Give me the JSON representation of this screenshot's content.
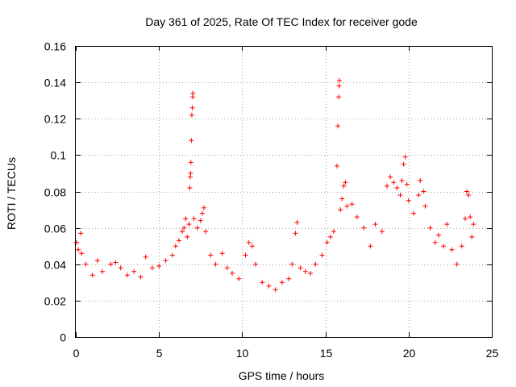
{
  "chart_data": {
    "type": "scatter",
    "title": "Day 361 of 2025, Rate Of TEC Index for receiver gode",
    "xlabel": "GPS time / hours",
    "ylabel": "ROTI / TECUs",
    "xlim": [
      0,
      25
    ],
    "ylim": [
      0,
      0.16
    ],
    "xticks": [
      0,
      5,
      10,
      15,
      20,
      25
    ],
    "xtick_labels": [
      "0",
      "5",
      "10",
      "15",
      "20",
      "25"
    ],
    "yticks": [
      0,
      0.02,
      0.04,
      0.06,
      0.08,
      0.1,
      0.12,
      0.14,
      0.16
    ],
    "ytick_labels": [
      "0",
      "0.02",
      "0.04",
      "0.06",
      "0.08",
      "0.1",
      "0.12",
      "0.14",
      "0.16"
    ],
    "grid": true,
    "marker": "+",
    "color": "#ff0000",
    "series": [
      {
        "values": [
          [
            0.05,
            0.052
          ],
          [
            0.15,
            0.048
          ],
          [
            0.3,
            0.057
          ],
          [
            0.35,
            0.046
          ],
          [
            0.6,
            0.04
          ],
          [
            1.0,
            0.034
          ],
          [
            1.3,
            0.042
          ],
          [
            1.6,
            0.036
          ],
          [
            2.1,
            0.04
          ],
          [
            2.4,
            0.041
          ],
          [
            2.7,
            0.038
          ],
          [
            3.1,
            0.034
          ],
          [
            3.5,
            0.036
          ],
          [
            3.9,
            0.033
          ],
          [
            4.2,
            0.044
          ],
          [
            4.6,
            0.038
          ],
          [
            5.0,
            0.039
          ],
          [
            5.4,
            0.042
          ],
          [
            5.8,
            0.045
          ],
          [
            6.0,
            0.05
          ],
          [
            6.2,
            0.053
          ],
          [
            6.4,
            0.058
          ],
          [
            6.5,
            0.06
          ],
          [
            6.6,
            0.065
          ],
          [
            6.7,
            0.055
          ],
          [
            6.8,
            0.062
          ],
          [
            6.85,
            0.082
          ],
          [
            6.88,
            0.088
          ],
          [
            6.9,
            0.09
          ],
          [
            6.92,
            0.096
          ],
          [
            6.95,
            0.108
          ],
          [
            6.97,
            0.122
          ],
          [
            7.0,
            0.126
          ],
          [
            7.02,
            0.132
          ],
          [
            7.04,
            0.134
          ],
          [
            7.1,
            0.065
          ],
          [
            7.3,
            0.06
          ],
          [
            7.5,
            0.064
          ],
          [
            7.6,
            0.068
          ],
          [
            7.7,
            0.071
          ],
          [
            7.8,
            0.058
          ],
          [
            8.1,
            0.045
          ],
          [
            8.4,
            0.04
          ],
          [
            8.8,
            0.046
          ],
          [
            9.1,
            0.038
          ],
          [
            9.4,
            0.035
          ],
          [
            9.8,
            0.032
          ],
          [
            10.2,
            0.045
          ],
          [
            10.4,
            0.052
          ],
          [
            10.6,
            0.05
          ],
          [
            10.8,
            0.04
          ],
          [
            11.2,
            0.03
          ],
          [
            11.6,
            0.028
          ],
          [
            12.0,
            0.026
          ],
          [
            12.4,
            0.03
          ],
          [
            12.8,
            0.032
          ],
          [
            13.0,
            0.04
          ],
          [
            13.2,
            0.057
          ],
          [
            13.3,
            0.063
          ],
          [
            13.5,
            0.038
          ],
          [
            13.8,
            0.036
          ],
          [
            14.1,
            0.035
          ],
          [
            14.4,
            0.04
          ],
          [
            14.8,
            0.045
          ],
          [
            15.1,
            0.052
          ],
          [
            15.3,
            0.055
          ],
          [
            15.5,
            0.058
          ],
          [
            15.7,
            0.094
          ],
          [
            15.75,
            0.116
          ],
          [
            15.8,
            0.132
          ],
          [
            15.82,
            0.138
          ],
          [
            15.84,
            0.141
          ],
          [
            15.9,
            0.07
          ],
          [
            16.0,
            0.076
          ],
          [
            16.1,
            0.083
          ],
          [
            16.2,
            0.085
          ],
          [
            16.3,
            0.072
          ],
          [
            16.6,
            0.073
          ],
          [
            16.9,
            0.066
          ],
          [
            17.3,
            0.06
          ],
          [
            17.7,
            0.05
          ],
          [
            18.0,
            0.062
          ],
          [
            18.4,
            0.058
          ],
          [
            18.7,
            0.083
          ],
          [
            18.9,
            0.088
          ],
          [
            19.1,
            0.085
          ],
          [
            19.3,
            0.082
          ],
          [
            19.5,
            0.078
          ],
          [
            19.6,
            0.086
          ],
          [
            19.7,
            0.095
          ],
          [
            19.8,
            0.099
          ],
          [
            19.9,
            0.084
          ],
          [
            20.0,
            0.075
          ],
          [
            20.3,
            0.068
          ],
          [
            20.6,
            0.078
          ],
          [
            20.7,
            0.086
          ],
          [
            20.9,
            0.08
          ],
          [
            21.0,
            0.072
          ],
          [
            21.3,
            0.06
          ],
          [
            21.6,
            0.052
          ],
          [
            21.8,
            0.056
          ],
          [
            22.1,
            0.05
          ],
          [
            22.3,
            0.062
          ],
          [
            22.6,
            0.048
          ],
          [
            22.9,
            0.04
          ],
          [
            23.2,
            0.05
          ],
          [
            23.4,
            0.065
          ],
          [
            23.5,
            0.08
          ],
          [
            23.6,
            0.078
          ],
          [
            23.7,
            0.066
          ],
          [
            23.8,
            0.055
          ],
          [
            23.9,
            0.062
          ]
        ]
      }
    ]
  }
}
